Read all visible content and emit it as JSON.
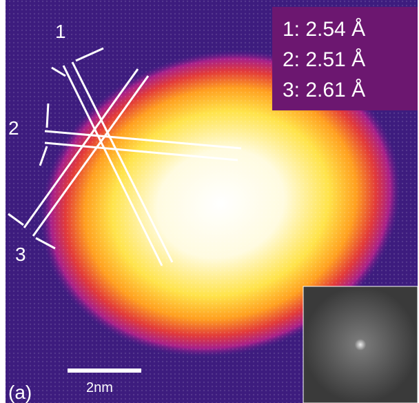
{
  "figure": {
    "panel_label": "(a)",
    "scale_bar": "2nm",
    "line_labels": [
      "1",
      "2",
      "3"
    ],
    "measurements": [
      "1: 2.54 Å",
      "2: 2.51 Å",
      "3: 2.61 Å"
    ]
  }
}
